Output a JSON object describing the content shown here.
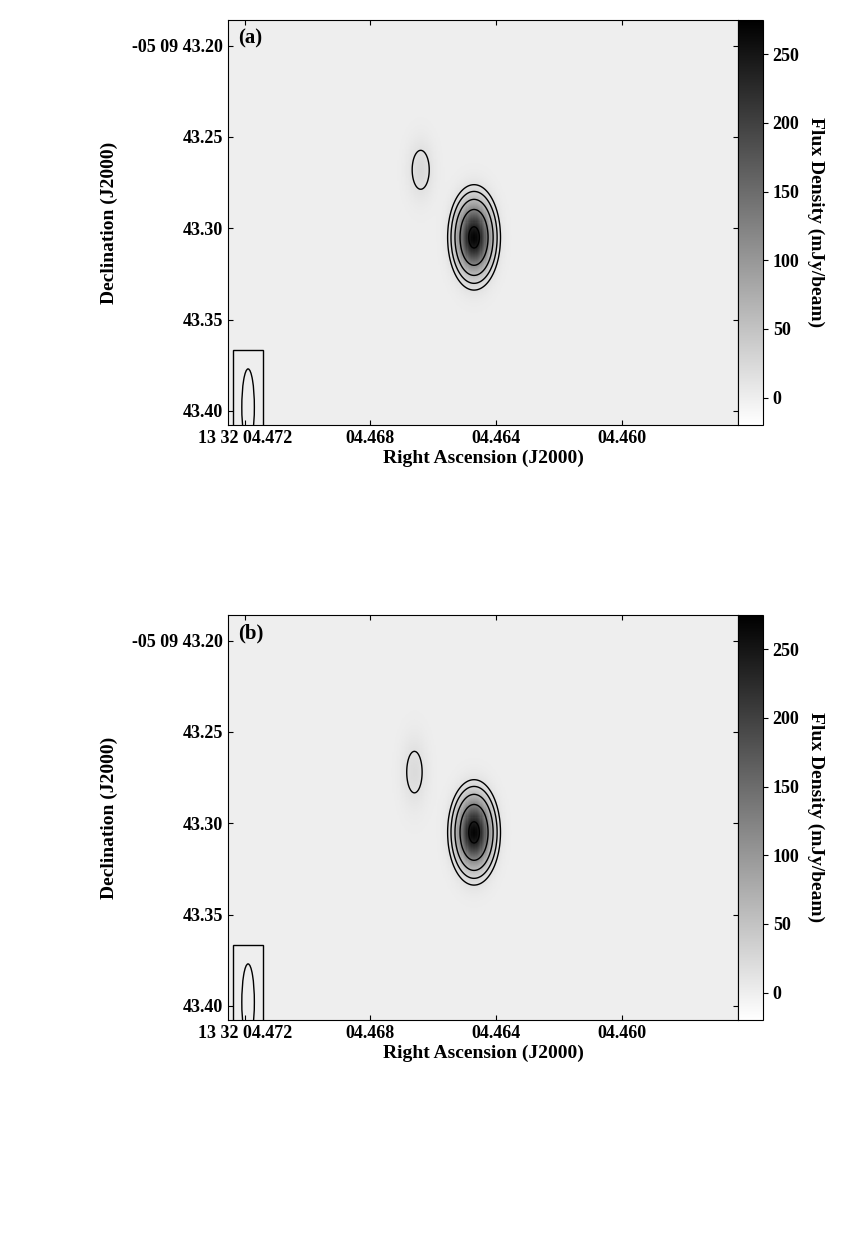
{
  "chart_data": [
    {
      "type": "contour",
      "title": "(a)",
      "x_label": "Right Ascension (J2000)",
      "y_label": "Declination (J2000)",
      "xlim": [
        4.47254,
        4.45629
      ],
      "ylim": [
        43.4077,
        43.186
      ],
      "xticks": [
        {
          "value": 4.472,
          "label": "13 32 04.472"
        },
        {
          "value": 4.468,
          "label": "04.468"
        },
        {
          "value": 4.464,
          "label": "04.464"
        },
        {
          "value": 4.46,
          "label": "04.460"
        }
      ],
      "yticks": [
        {
          "value": 43.2,
          "label": "-05 09 43.20"
        },
        {
          "value": 43.25,
          "label": "43.25"
        },
        {
          "value": 43.3,
          "label": "43.30"
        },
        {
          "value": 43.35,
          "label": "43.35"
        },
        {
          "value": 43.4,
          "label": "43.40"
        }
      ],
      "color": "gray",
      "components": [
        {
          "ra": 4.4647,
          "dec": 43.305,
          "peak": 270,
          "sigma_ra": 0.00035,
          "sigma_dec": 0.012
        },
        {
          "ra": 4.4664,
          "dec": 43.268,
          "peak": 24,
          "sigma_ra": 0.00028,
          "sigma_dec": 0.011
        }
      ],
      "contour_levels": [
        15,
        30,
        60,
        120,
        240
      ],
      "beam": {
        "ra": 4.4719,
        "dec": 43.398,
        "width_ra": 0.0004,
        "height_dec": 0.042
      },
      "colorbar": {
        "label": "Flux Density (mJy/beam)",
        "range": [
          -20,
          275
        ],
        "ticks": [
          0,
          50,
          100,
          150,
          200,
          250
        ]
      }
    },
    {
      "type": "contour",
      "title": "(b)",
      "x_label": "Right Ascension (J2000)",
      "y_label": "Declination (J2000)",
      "xlim": [
        4.47254,
        4.45629
      ],
      "ylim": [
        43.4077,
        43.186
      ],
      "xticks": [
        {
          "value": 4.472,
          "label": "13 32 04.472"
        },
        {
          "value": 4.468,
          "label": "04.468"
        },
        {
          "value": 4.464,
          "label": "04.464"
        },
        {
          "value": 4.46,
          "label": "04.460"
        }
      ],
      "yticks": [
        {
          "value": 43.2,
          "label": "-05 09 43.20"
        },
        {
          "value": 43.25,
          "label": "43.25"
        },
        {
          "value": 43.3,
          "label": "43.30"
        },
        {
          "value": 43.35,
          "label": "43.35"
        },
        {
          "value": 43.4,
          "label": "43.40"
        }
      ],
      "color": "gray",
      "components": [
        {
          "ra": 4.4647,
          "dec": 43.305,
          "peak": 270,
          "sigma_ra": 0.00035,
          "sigma_dec": 0.012
        },
        {
          "ra": 4.4666,
          "dec": 43.272,
          "peak": 22,
          "sigma_ra": 0.00028,
          "sigma_dec": 0.013
        }
      ],
      "contour_levels": [
        15,
        30,
        60,
        120,
        240
      ],
      "beam": {
        "ra": 4.4719,
        "dec": 43.398,
        "width_ra": 0.0004,
        "height_dec": 0.042
      },
      "colorbar": {
        "label": "Flux Density (mJy/beam)",
        "range": [
          -20,
          275
        ],
        "ticks": [
          0,
          50,
          100,
          150,
          200,
          250
        ]
      }
    }
  ]
}
